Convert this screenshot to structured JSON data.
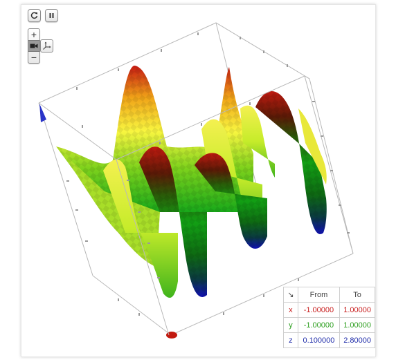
{
  "controls": {
    "reset_icon": "rotate-icon",
    "pause_icon": "pause-icon",
    "zoom_in_label": "+",
    "zoom_out_label": "−",
    "camera_icon": "camera-icon",
    "axes_icon": "axes-icon"
  },
  "range_table": {
    "corner_icon": "arrow-icon",
    "corner_glyph": "↘",
    "headers": {
      "from": "From",
      "to": "To"
    },
    "rows": [
      {
        "name": "x",
        "from": "-1.00000",
        "to": "1.00000",
        "color": "#c81e1e"
      },
      {
        "name": "y",
        "from": "-1.00000",
        "to": "1.00000",
        "color": "#2a9d1c"
      },
      {
        "name": "z",
        "from": "0.100000",
        "to": "2.80000",
        "color": "#1d2aa8"
      }
    ]
  },
  "plot": {
    "type": "3d-surface",
    "colormap": [
      "#1010b0",
      "#008000",
      "#ffff40",
      "#c01010"
    ],
    "box": true
  }
}
